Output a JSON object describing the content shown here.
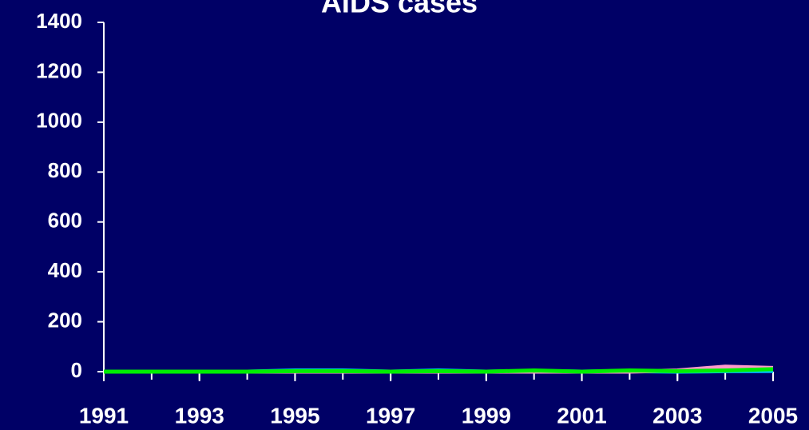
{
  "chart_data": {
    "type": "line",
    "title": "AIDS cases",
    "x": [
      1991,
      1992,
      1993,
      1994,
      1995,
      1996,
      1997,
      1998,
      1999,
      2000,
      2001,
      2002,
      2003,
      2004,
      2005
    ],
    "series": [
      {
        "color": "#00ccff",
        "values": [
          0,
          0,
          0,
          0,
          5,
          5,
          0,
          5,
          0,
          3,
          0,
          2,
          0,
          2,
          3
        ]
      },
      {
        "color": "#ff99cc",
        "values": [
          0,
          0,
          0,
          0,
          0,
          0,
          0,
          0,
          0,
          0,
          0,
          0,
          5,
          20,
          15
        ]
      },
      {
        "color": "#00ee00",
        "values": [
          0,
          0,
          0,
          0,
          2,
          2,
          0,
          2,
          0,
          5,
          0,
          5,
          2,
          5,
          10
        ]
      }
    ],
    "xlim": [
      1991,
      2005
    ],
    "xticks": [
      1991,
      1993,
      1995,
      1997,
      1999,
      2001,
      2003,
      2005
    ],
    "ylim": [
      0,
      1400
    ],
    "yticks": [
      0,
      200,
      400,
      600,
      800,
      1000,
      1200,
      1400
    ]
  }
}
